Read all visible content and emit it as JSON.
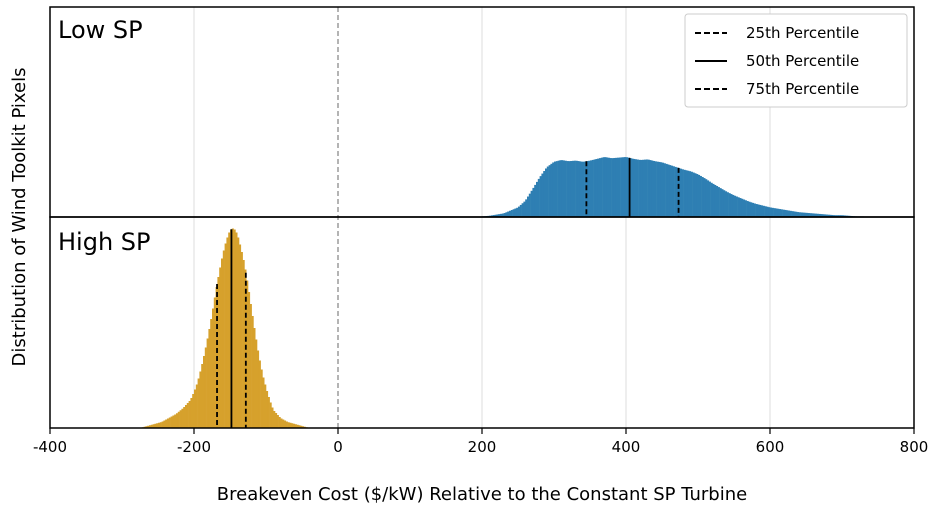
{
  "chart_data": {
    "type": "histogram",
    "xlabel": "Breakeven Cost ($/kW) Relative to the Constant SP Turbine",
    "ylabel": "Distribution of Wind Toolkit Pixels",
    "xlim": [
      -400,
      800
    ],
    "x_ticks": [
      -400,
      -200,
      0,
      200,
      400,
      600,
      800
    ],
    "x_tick_labels": [
      "-400",
      "-200",
      "0",
      "200",
      "400",
      "600",
      "800"
    ],
    "grid": "vertical",
    "reference_line": {
      "x": 0,
      "style": "dashed"
    },
    "legend": {
      "placement": "top-right",
      "entries": [
        {
          "label": "25th Percentile",
          "style": "dashed"
        },
        {
          "label": "50th Percentile",
          "style": "solid"
        },
        {
          "label": "75th Percentile",
          "style": "dashed"
        }
      ]
    },
    "panels": [
      {
        "label": "Low SP",
        "color": "#2e7fb3",
        "percentiles": {
          "p25": 345,
          "p50": 405,
          "p75": 473
        },
        "bin_centers": [
          190,
          210,
          230,
          250,
          260,
          270,
          280,
          290,
          300,
          310,
          320,
          330,
          340,
          350,
          360,
          370,
          380,
          390,
          400,
          410,
          420,
          430,
          440,
          450,
          460,
          470,
          480,
          490,
          500,
          510,
          520,
          530,
          540,
          550,
          560,
          570,
          580,
          590,
          600,
          610,
          620,
          630,
          640,
          650,
          660,
          670,
          680,
          690,
          700,
          710,
          720,
          730
        ],
        "relative_density": [
          0.0,
          0.02,
          0.06,
          0.16,
          0.27,
          0.46,
          0.66,
          0.83,
          0.92,
          0.95,
          0.93,
          0.94,
          0.92,
          0.94,
          0.97,
          1.0,
          0.98,
          0.99,
          1.0,
          0.97,
          0.95,
          0.96,
          0.93,
          0.91,
          0.87,
          0.83,
          0.79,
          0.76,
          0.71,
          0.64,
          0.56,
          0.49,
          0.42,
          0.36,
          0.31,
          0.26,
          0.22,
          0.19,
          0.16,
          0.14,
          0.12,
          0.1,
          0.08,
          0.07,
          0.06,
          0.05,
          0.04,
          0.03,
          0.03,
          0.02,
          0.01,
          0.01
        ]
      },
      {
        "label": "High SP",
        "color": "#d6a12c",
        "percentiles": {
          "p25": -168,
          "p50": -148,
          "p75": -128
        },
        "bin_centers": [
          -275,
          -265,
          -255,
          -245,
          -235,
          -225,
          -215,
          -205,
          -200,
          -195,
          -190,
          -185,
          -180,
          -175,
          -170,
          -165,
          -160,
          -155,
          -150,
          -145,
          -140,
          -135,
          -130,
          -125,
          -120,
          -115,
          -110,
          -105,
          -100,
          -95,
          -90,
          -80,
          -70,
          -60,
          -50,
          -40
        ],
        "relative_density": [
          0.0,
          0.01,
          0.02,
          0.03,
          0.05,
          0.07,
          0.1,
          0.14,
          0.18,
          0.23,
          0.3,
          0.38,
          0.47,
          0.57,
          0.68,
          0.78,
          0.87,
          0.94,
          0.99,
          1.0,
          0.97,
          0.9,
          0.82,
          0.71,
          0.59,
          0.47,
          0.36,
          0.27,
          0.2,
          0.14,
          0.09,
          0.05,
          0.03,
          0.02,
          0.01,
          0.0
        ]
      }
    ]
  }
}
